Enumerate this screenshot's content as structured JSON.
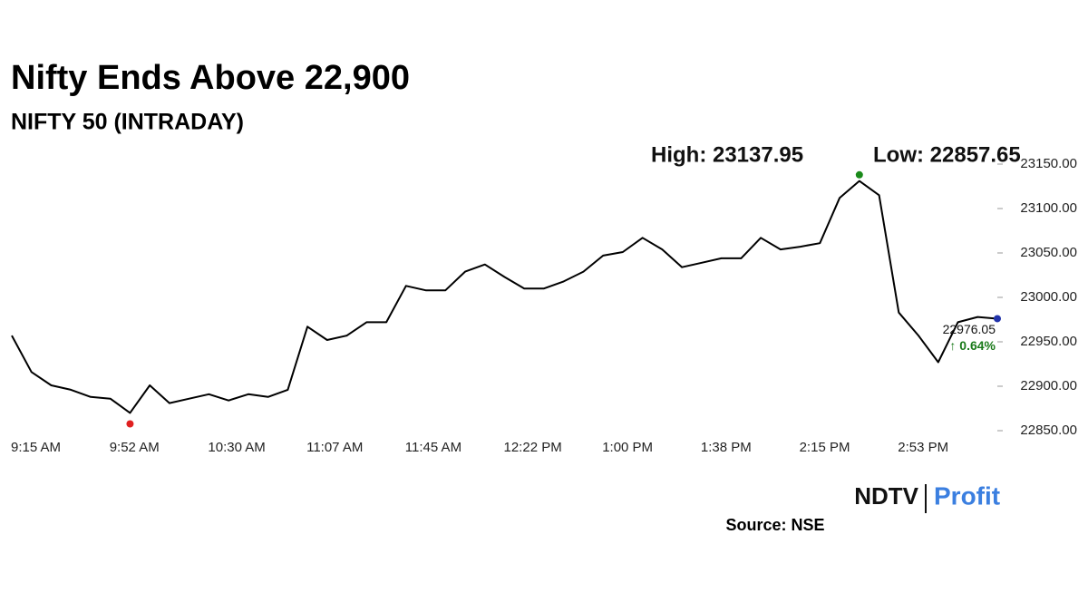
{
  "chart_data": {
    "type": "line",
    "title": "Nifty Ends Above 22,900",
    "subtitle": "NIFTY 50 (INTRADAY)",
    "categories": [
      "9:15 AM",
      null,
      null,
      null,
      null,
      "9:52 AM",
      null,
      null,
      null,
      null,
      "10:30 AM",
      null,
      null,
      null,
      null,
      "11:07 AM",
      null,
      null,
      null,
      null,
      "11:45 AM",
      null,
      null,
      null,
      null,
      "12:22 PM",
      null,
      null,
      null,
      null,
      "1:00 PM",
      null,
      null,
      null,
      null,
      "1:38 PM",
      null,
      null,
      null,
      null,
      "2:15 PM",
      null,
      null,
      null,
      null,
      "2:53 PM",
      null,
      null,
      null,
      null,
      null
    ],
    "series": [
      {
        "name": "NIFTY 50",
        "color": "#000000",
        "values": [
          22957,
          22916,
          22901,
          22896,
          22888,
          22886,
          22870,
          22901,
          22881,
          22886,
          22891,
          22884,
          22891,
          22888,
          22896,
          22967,
          22952,
          22957,
          22972,
          22972,
          23013,
          23008,
          23008,
          23029,
          23037,
          23023,
          23010,
          23010,
          23018,
          23029,
          23047,
          23051,
          23067,
          23054,
          23034,
          23039,
          23044,
          23044,
          23067,
          23054,
          23057,
          23061,
          23112,
          23131,
          23115,
          22983,
          22957,
          22927,
          22972,
          22978,
          22976.05
        ],
        "value_labels": [
          null,
          null,
          null,
          null,
          null,
          null,
          null,
          null,
          null,
          null,
          null,
          null,
          null,
          null,
          null,
          null,
          null,
          null,
          null,
          null,
          null,
          null,
          null,
          null,
          null,
          null,
          null,
          null,
          null,
          null,
          null,
          null,
          null,
          null,
          null,
          null,
          null,
          null,
          null,
          null,
          null,
          null,
          null,
          null,
          null,
          null,
          null,
          null,
          null,
          null,
          "22976.05"
        ]
      }
    ],
    "change_label": "↑ 0.64%",
    "change_color": "#1a7a1a",
    "annotations": [
      {
        "label": "High: 23137.95",
        "value": 23137.95,
        "color": "#1a8a1a"
      },
      {
        "label": "Low: 22857.65",
        "value": 22857.65,
        "color": "#e02020"
      }
    ],
    "ylim": [
      22840,
      23160
    ],
    "yticks": [
      {
        "value": 22850,
        "label": "22850.00"
      },
      {
        "value": 22900,
        "label": "22900.00"
      },
      {
        "value": 22950,
        "label": "22950.00"
      },
      {
        "value": 23000,
        "label": "23000.00"
      },
      {
        "value": 23050,
        "label": "23050.00"
      },
      {
        "value": 23100,
        "label": "23100.00"
      },
      {
        "value": 23150,
        "label": "23150.00"
      }
    ],
    "grid": false,
    "source": "Source: NSE",
    "logo": {
      "left": "NDTV",
      "right": "Profit"
    }
  }
}
